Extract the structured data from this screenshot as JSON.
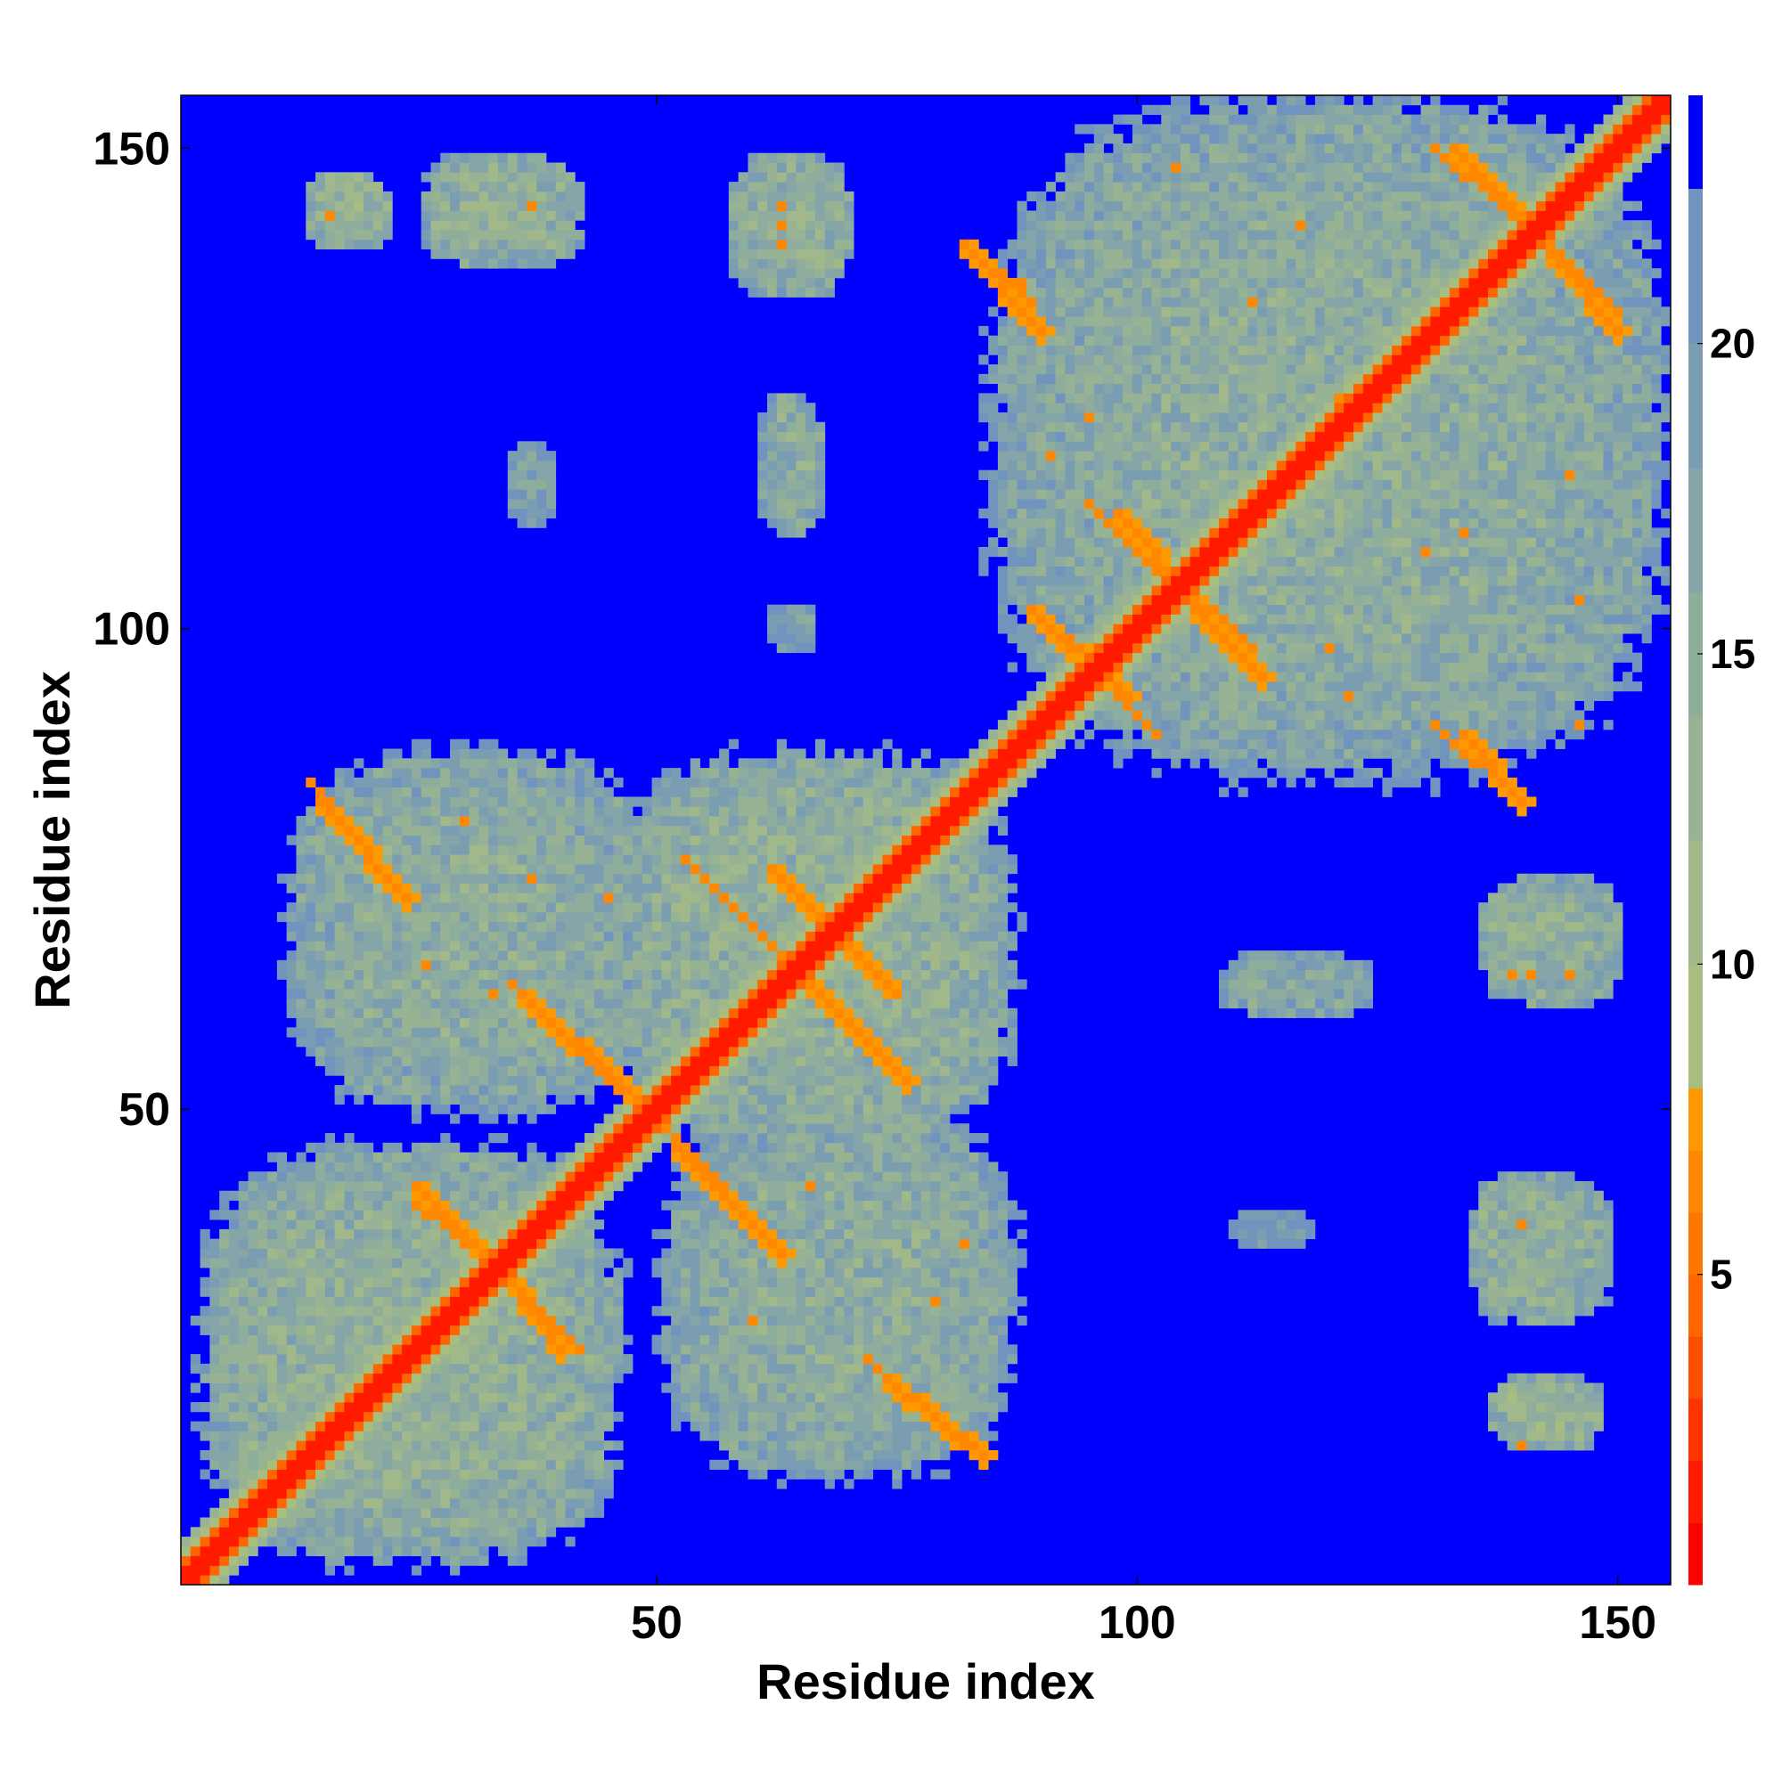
{
  "chart_data": {
    "type": "heatmap",
    "title": "",
    "xlabel": "Residue index",
    "ylabel": "Residue index",
    "n_residues": 155,
    "xlim": [
      1,
      155
    ],
    "ylim": [
      1,
      155
    ],
    "x_ticks": [
      50,
      100,
      150
    ],
    "x_tick_labels": [
      "50",
      "100",
      "150"
    ],
    "y_ticks": [
      50,
      100,
      150
    ],
    "y_tick_labels": [
      "50",
      "100",
      "150"
    ],
    "colorbar": {
      "range": [
        0,
        24
      ],
      "ticks": [
        5,
        10,
        15,
        20
      ],
      "tick_labels": [
        "5",
        "10",
        "15",
        "20"
      ],
      "levels": [
        {
          "from": 0,
          "to": 1,
          "color": "#ff0000"
        },
        {
          "from": 1,
          "to": 2,
          "color": "#ff1a00"
        },
        {
          "from": 2,
          "to": 3,
          "color": "#ff3300"
        },
        {
          "from": 3,
          "to": 4,
          "color": "#ff4d00"
        },
        {
          "from": 4,
          "to": 5,
          "color": "#ff6600"
        },
        {
          "from": 5,
          "to": 6,
          "color": "#ff7700"
        },
        {
          "from": 6,
          "to": 7,
          "color": "#ff8800"
        },
        {
          "from": 7,
          "to": 8,
          "color": "#ff9900"
        },
        {
          "from": 8,
          "to": 10,
          "color": "#a9bd80"
        },
        {
          "from": 10,
          "to": 12,
          "color": "#a0b88a"
        },
        {
          "from": 12,
          "to": 14,
          "color": "#98b394"
        },
        {
          "from": 14,
          "to": 16,
          "color": "#8fad9c"
        },
        {
          "from": 16,
          "to": 18,
          "color": "#85a5a8"
        },
        {
          "from": 18,
          "to": 20,
          "color": "#7b9db2"
        },
        {
          "from": 20,
          "to": 22.5,
          "color": "#7094bd"
        },
        {
          "from": 22.5,
          "to": 24,
          "color": "#0000ff"
        }
      ]
    },
    "background_value": 24,
    "diagonal": {
      "core_value": 1,
      "band_halfwidth": 2
    },
    "contact_blocks": [
      {
        "x": [
          3,
          46
        ],
        "y": [
          3,
          46
        ],
        "value": 14
      },
      {
        "x": [
          46,
          87
        ],
        "y": [
          46,
          87
        ],
        "value": 14
      },
      {
        "x": [
          12,
          50
        ],
        "y": [
          50,
          87
        ],
        "value": 15
      },
      {
        "x": [
          51,
          87
        ],
        "y": [
          12,
          50
        ],
        "value": 15
      },
      {
        "x": [
          85,
          155
        ],
        "y": [
          85,
          155
        ],
        "value": 15
      },
      {
        "x": [
          14,
          22
        ],
        "y": [
          140,
          147
        ],
        "value": 13
      },
      {
        "x": [
          26,
          42
        ],
        "y": [
          138,
          149
        ],
        "value": 14
      },
      {
        "x": [
          58,
          70
        ],
        "y": [
          135,
          149
        ],
        "value": 14
      },
      {
        "x": [
          61,
          67
        ],
        "y": [
          110,
          124
        ],
        "value": 15
      },
      {
        "x": [
          35,
          39
        ],
        "y": [
          111,
          119
        ],
        "value": 18
      },
      {
        "x": [
          62,
          66
        ],
        "y": [
          98,
          102
        ],
        "value": 18
      },
      {
        "x": [
          136,
          150
        ],
        "y": [
          61,
          74
        ],
        "value": 14
      },
      {
        "x": [
          109,
          124
        ],
        "y": [
          60,
          66
        ],
        "value": 16
      },
      {
        "x": [
          135,
          149
        ],
        "y": [
          28,
          43
        ],
        "value": 14
      },
      {
        "x": [
          137,
          148
        ],
        "y": [
          15,
          22
        ],
        "value": 13
      },
      {
        "x": [
          110,
          118
        ],
        "y": [
          36,
          39
        ],
        "value": 19
      }
    ],
    "contact_lines": [
      {
        "from": [
          15,
          82
        ],
        "to": [
          24,
          72
        ],
        "value": 6
      },
      {
        "from": [
          36,
          62
        ],
        "to": [
          48,
          51
        ],
        "value": 6
      },
      {
        "from": [
          52,
          46
        ],
        "to": [
          63,
          35
        ],
        "value": 6
      },
      {
        "from": [
          62,
          75
        ],
        "to": [
          74,
          63
        ],
        "value": 6
      },
      {
        "from": [
          65,
          64
        ],
        "to": [
          76,
          53
        ],
        "value": 6
      },
      {
        "from": [
          74,
          22
        ],
        "to": [
          84,
          14
        ],
        "value": 6
      },
      {
        "from": [
          25,
          42
        ],
        "to": [
          31,
          36
        ],
        "value": 6
      },
      {
        "from": [
          34,
          33
        ],
        "to": [
          40,
          25
        ],
        "value": 6
      },
      {
        "from": [
          82,
          140
        ],
        "to": [
          90,
          131
        ],
        "value": 6
      },
      {
        "from": [
          98,
          112
        ],
        "to": [
          106,
          103
        ],
        "value": 6
      },
      {
        "from": [
          89,
          102
        ],
        "to": [
          99,
          93
        ],
        "value": 6
      },
      {
        "from": [
          106,
          102
        ],
        "to": [
          113,
          95
        ],
        "value": 6
      },
      {
        "from": [
          133,
          150
        ],
        "to": [
          141,
          142
        ],
        "value": 6
      },
      {
        "from": [
          143,
          139
        ],
        "to": [
          150,
          131
        ],
        "value": 6
      },
      {
        "from": [
          134,
          89
        ],
        "to": [
          140,
          82
        ],
        "value": 6
      }
    ],
    "contact_points": [
      [
        16,
        143
      ],
      [
        37,
        144
      ],
      [
        63,
        142
      ],
      [
        63,
        144
      ],
      [
        63,
        140
      ],
      [
        140,
        15
      ],
      [
        140,
        38
      ],
      [
        139,
        64
      ],
      [
        141,
        64
      ],
      [
        145,
        64
      ],
      [
        30,
        80
      ],
      [
        37,
        74
      ],
      [
        26,
        65
      ],
      [
        33,
        62
      ],
      [
        45,
        72
      ],
      [
        60,
        28
      ],
      [
        66,
        42
      ],
      [
        79,
        30
      ],
      [
        82,
        36
      ],
      [
        88,
        136
      ],
      [
        91,
        118
      ],
      [
        95,
        122
      ],
      [
        104,
        148
      ],
      [
        112,
        134
      ],
      [
        117,
        142
      ],
      [
        121,
        124
      ],
      [
        130,
        108
      ],
      [
        134,
        110
      ],
      [
        145,
        116
      ],
      [
        146,
        103
      ],
      [
        122,
        93
      ],
      [
        146,
        90
      ],
      [
        120,
        98
      ]
    ]
  }
}
